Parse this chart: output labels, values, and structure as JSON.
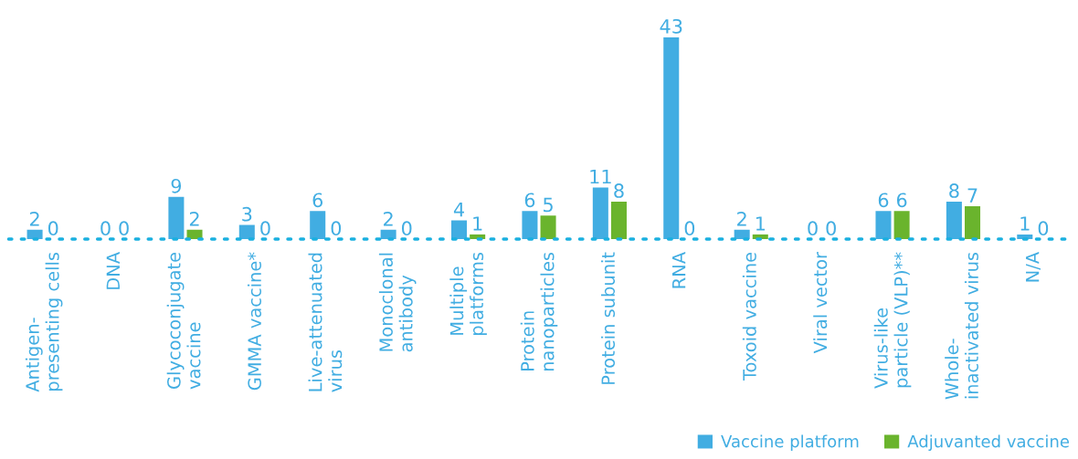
{
  "chart_data": {
    "type": "bar",
    "data_labels": true,
    "legend": "bottom right",
    "grid": false,
    "categories": [
      "Antigen-\npresenting cells",
      "DNA",
      "Glycoconjugate\nvaccine",
      "GMMA vaccine*",
      "Live-attenuated\nvirus",
      "Monoclonal\nantibody",
      "Multiple\nplatforms",
      "Protein\nnanoparticles",
      "Protein subunit",
      "RNA",
      "Toxoid vaccine",
      "Viral vector",
      "Virus-like\nparticle (VLP)**",
      "Whole-\ninactivated virus",
      "N/A"
    ],
    "series": [
      {
        "name": "Vaccine platform",
        "color": "#41ade2",
        "values": [
          2,
          0,
          9,
          3,
          6,
          2,
          4,
          6,
          11,
          43,
          2,
          0,
          6,
          8,
          1
        ]
      },
      {
        "name": "Adjuvanted vaccine",
        "color": "#6ab42d",
        "values": [
          0,
          0,
          2,
          0,
          0,
          0,
          1,
          5,
          8,
          0,
          1,
          0,
          6,
          7,
          0
        ]
      }
    ]
  }
}
